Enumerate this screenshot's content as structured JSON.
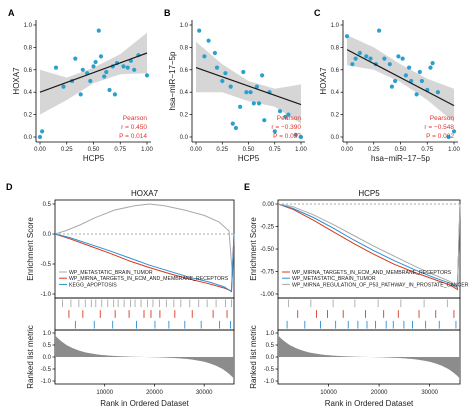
{
  "colors": {
    "point": "#2aa0cf",
    "fit_line": "#1a1a1a",
    "ci_band": "#cfcfcf",
    "stat_text": "#e3322b",
    "curve_gray": "#a9a9a9",
    "curve_red": "#d9381e",
    "curve_blue": "#2a8fd6",
    "hit_gray": "#9a9a9a",
    "metric_fill": "#8c8c8c"
  },
  "chart_data": [
    {
      "id": "A",
      "panel_label": "A",
      "type": "scatter",
      "xlabel": "HCP5",
      "ylabel": "HOXA7",
      "xlim": [
        0.0,
        1.0
      ],
      "ylim": [
        0.0,
        1.0
      ],
      "xticks": [
        "0.00",
        "0.25",
        "0.50",
        "0.75",
        "1.00"
      ],
      "yticks": [
        "0.0",
        "0.2",
        "0.4",
        "0.6",
        "0.8",
        "1.0"
      ],
      "points": [
        [
          0.0,
          0.0
        ],
        [
          0.02,
          0.05
        ],
        [
          0.15,
          0.62
        ],
        [
          0.22,
          0.45
        ],
        [
          0.3,
          0.5
        ],
        [
          0.33,
          0.7
        ],
        [
          0.38,
          0.38
        ],
        [
          0.4,
          0.6
        ],
        [
          0.44,
          0.57
        ],
        [
          0.47,
          0.5
        ],
        [
          0.5,
          0.63
        ],
        [
          0.52,
          0.67
        ],
        [
          0.55,
          0.95
        ],
        [
          0.57,
          0.72
        ],
        [
          0.6,
          0.54
        ],
        [
          0.62,
          0.58
        ],
        [
          0.65,
          0.42
        ],
        [
          0.68,
          0.63
        ],
        [
          0.7,
          0.38
        ],
        [
          0.72,
          0.66
        ],
        [
          0.78,
          0.63
        ],
        [
          0.82,
          0.62
        ],
        [
          0.85,
          0.68
        ],
        [
          0.88,
          0.6
        ],
        [
          0.92,
          0.73
        ],
        [
          1.0,
          0.55
        ]
      ],
      "fit": [
        [
          0.0,
          0.4
        ],
        [
          1.0,
          0.75
        ]
      ],
      "ci": {
        "x": [
          0.0,
          0.25,
          0.5,
          0.75,
          1.0
        ],
        "upper": [
          0.6,
          0.53,
          0.62,
          0.74,
          0.93
        ],
        "lower": [
          0.2,
          0.33,
          0.48,
          0.56,
          0.57
        ]
      },
      "stats": {
        "method": "Pearson",
        "r": "r = 0.450",
        "p": "P = 0.014"
      }
    },
    {
      "id": "B",
      "panel_label": "B",
      "type": "scatter",
      "xlabel": "HCP5",
      "ylabel": "hsa−miR−17−5p",
      "xlim": [
        0.0,
        1.0
      ],
      "ylim": [
        0.0,
        1.0
      ],
      "xticks": [
        "0.00",
        "0.25",
        "0.50",
        "0.75",
        "1.00"
      ],
      "yticks": [
        "0.0",
        "0.2",
        "0.4",
        "0.6",
        "0.8",
        "1.0"
      ],
      "points": [
        [
          0.03,
          0.95
        ],
        [
          0.08,
          0.72
        ],
        [
          0.12,
          0.86
        ],
        [
          0.18,
          0.75
        ],
        [
          0.2,
          0.62
        ],
        [
          0.25,
          0.5
        ],
        [
          0.28,
          0.57
        ],
        [
          0.33,
          0.45
        ],
        [
          0.35,
          0.12
        ],
        [
          0.38,
          0.08
        ],
        [
          0.42,
          0.27
        ],
        [
          0.45,
          0.58
        ],
        [
          0.48,
          0.4
        ],
        [
          0.52,
          0.4
        ],
        [
          0.55,
          0.3
        ],
        [
          0.58,
          0.45
        ],
        [
          0.6,
          0.3
        ],
        [
          0.63,
          0.55
        ],
        [
          0.65,
          0.15
        ],
        [
          0.7,
          0.4
        ],
        [
          0.75,
          0.05
        ],
        [
          0.8,
          0.23
        ],
        [
          0.85,
          0.18
        ],
        [
          0.88,
          0.2
        ],
        [
          0.95,
          0.02
        ],
        [
          1.0,
          0.0
        ]
      ],
      "fit": [
        [
          0.0,
          0.62
        ],
        [
          1.0,
          0.29
        ]
      ],
      "ci": {
        "x": [
          0.0,
          0.25,
          0.5,
          0.75,
          1.0
        ],
        "upper": [
          0.85,
          0.65,
          0.5,
          0.43,
          0.47
        ],
        "lower": [
          0.4,
          0.4,
          0.32,
          0.27,
          0.12
        ]
      },
      "stats": {
        "method": "Pearson",
        "r": "r = −0.390",
        "p": "P = 0.037"
      }
    },
    {
      "id": "C",
      "panel_label": "C",
      "type": "scatter",
      "xlabel": "hsa−miR−17−5p",
      "ylabel": "HOXA7",
      "xlim": [
        0.0,
        1.0
      ],
      "ylim": [
        0.0,
        1.0
      ],
      "xticks": [
        "0.00",
        "0.25",
        "0.50",
        "0.75",
        "1.00"
      ],
      "yticks": [
        "0.0",
        "0.2",
        "0.4",
        "0.6",
        "0.8",
        "1.0"
      ],
      "points": [
        [
          0.0,
          0.9
        ],
        [
          0.05,
          0.65
        ],
        [
          0.08,
          0.7
        ],
        [
          0.12,
          0.75
        ],
        [
          0.18,
          0.72
        ],
        [
          0.22,
          0.7
        ],
        [
          0.27,
          0.65
        ],
        [
          0.3,
          0.95
        ],
        [
          0.35,
          0.7
        ],
        [
          0.4,
          0.65
        ],
        [
          0.42,
          0.45
        ],
        [
          0.45,
          0.5
        ],
        [
          0.48,
          0.72
        ],
        [
          0.52,
          0.7
        ],
        [
          0.55,
          0.55
        ],
        [
          0.58,
          0.62
        ],
        [
          0.6,
          0.5
        ],
        [
          0.65,
          0.38
        ],
        [
          0.68,
          0.58
        ],
        [
          0.7,
          0.5
        ],
        [
          0.75,
          0.42
        ],
        [
          0.78,
          0.62
        ],
        [
          0.8,
          0.66
        ],
        [
          0.85,
          0.4
        ],
        [
          0.95,
          0.0
        ],
        [
          1.0,
          0.05
        ]
      ],
      "fit": [
        [
          0.0,
          0.78
        ],
        [
          1.0,
          0.28
        ]
      ],
      "ci": {
        "x": [
          0.0,
          0.25,
          0.5,
          0.75,
          1.0
        ],
        "upper": [
          0.91,
          0.8,
          0.65,
          0.52,
          0.43
        ],
        "lower": [
          0.64,
          0.6,
          0.49,
          0.33,
          0.13
        ]
      },
      "stats": {
        "method": "Pearson",
        "r": "r = −0.548",
        "p": "P = 0.002"
      }
    },
    {
      "id": "D",
      "panel_label": "D",
      "type": "line",
      "title": "HOXA7",
      "ylabel_top": "Enrichment Score",
      "ylabel_bottom": "Ranked list metric",
      "xlabel": "Rank in Ordered Dataset",
      "xlim": [
        0,
        36000
      ],
      "xticks": [
        10000,
        20000,
        30000
      ],
      "xtick_labels": [
        "10000",
        "20000",
        "30000"
      ],
      "es_ylim": [
        -1.0,
        0.5
      ],
      "es_yticks": [
        "0.5",
        "0.0",
        "-0.5",
        "-1.0"
      ],
      "metric_ylim": [
        -1.0,
        1.0
      ],
      "metric_yticks": [
        "1.0",
        "0.5",
        "0.0",
        "-0.5",
        "-1.0"
      ],
      "legend": [
        "WP_METASTATIC_BRAIN_TUMOR",
        "WP_MIRNA_TARGETS_IN_ECM_AND_MEMBRANE_RECEPTORS",
        "KEGG_APOPTOSIS"
      ],
      "series": [
        {
          "name": "WP_METASTATIC_BRAIN_TUMOR",
          "color": "curve_gray",
          "x": [
            0,
            2000,
            5000,
            8000,
            12000,
            16000,
            19000,
            22000,
            26000,
            30000,
            33000,
            35000,
            35700,
            36000
          ],
          "y": [
            0,
            0.05,
            0.15,
            0.27,
            0.4,
            0.47,
            0.5,
            0.47,
            0.4,
            0.31,
            0.2,
            0.05,
            -0.7,
            0.0
          ]
        },
        {
          "name": "WP_MIRNA_TARGETS_IN_ECM_AND_MEMBRANE_RECEPTORS",
          "color": "curve_red",
          "x": [
            0,
            3000,
            7000,
            11000,
            15000,
            19000,
            23000,
            27000,
            31000,
            34000,
            35500,
            36000
          ],
          "y": [
            0,
            -0.08,
            -0.2,
            -0.32,
            -0.45,
            -0.56,
            -0.66,
            -0.75,
            -0.83,
            -0.9,
            -0.95,
            0.0
          ]
        },
        {
          "name": "KEGG_APOPTOSIS",
          "color": "curve_blue",
          "x": [
            0,
            3000,
            7000,
            11000,
            15000,
            19000,
            23000,
            27000,
            31000,
            34000,
            35500,
            36000
          ],
          "y": [
            0,
            -0.06,
            -0.17,
            -0.28,
            -0.4,
            -0.52,
            -0.62,
            -0.72,
            -0.8,
            -0.88,
            -0.96,
            0.0
          ]
        }
      ],
      "hits": [
        {
          "color": "curve_gray",
          "x": [
            1500,
            3200,
            4800,
            6100,
            7300,
            8200,
            9400,
            10600,
            11800,
            12700,
            13900,
            15200,
            16100,
            17300,
            18600,
            19700,
            21000,
            22400,
            23900,
            25300,
            27100,
            28900,
            30600,
            32400,
            34300,
            35500
          ]
        },
        {
          "color": "curve_red",
          "x": [
            2800,
            5600,
            9100,
            12100,
            14900,
            17900,
            19300,
            21100,
            24100,
            27600,
            31800,
            34600
          ]
        },
        {
          "color": "curve_blue",
          "x": [
            4100,
            7900,
            11600,
            16400,
            20100,
            22900,
            26100,
            29400,
            33100,
            35300
          ]
        }
      ]
    },
    {
      "id": "E",
      "panel_label": "E",
      "type": "line",
      "title": "HCP5",
      "ylabel_top": "Enrichment Score",
      "ylabel_bottom": "Ranked list metric",
      "xlabel": "Rank in Ordered Dataset",
      "xlim": [
        0,
        36000
      ],
      "xticks": [
        10000,
        20000,
        30000
      ],
      "xtick_labels": [
        "10000",
        "20000",
        "30000"
      ],
      "es_ylim": [
        -1.0,
        0.0
      ],
      "es_yticks": [
        "0.00",
        "-0.25",
        "-0.50",
        "-0.75",
        "-1.00"
      ],
      "metric_ylim": [
        -1.0,
        1.0
      ],
      "metric_yticks": [
        "1.0",
        "0.5",
        "0.0",
        "-0.5",
        "-1.0"
      ],
      "legend": [
        "WP_MIRNA_TARGETS_IN_ECM_AND_MEMBRANE_RECEPTORS",
        "WP_METASTATIC_BRAIN_TUMOR",
        "WP_MIRNA_REGULATION_OF_P53_PATHWAY_IN_PROSTATE_CANCER"
      ],
      "series": [
        {
          "name": "WP_MIRNA_TARGETS_IN_ECM_AND_MEMBRANE_RECEPTORS",
          "color": "curve_red",
          "x": [
            0,
            3000,
            7000,
            11000,
            15000,
            19000,
            23000,
            27000,
            31000,
            34000,
            35500,
            36000
          ],
          "y": [
            0,
            -0.06,
            -0.18,
            -0.31,
            -0.44,
            -0.56,
            -0.67,
            -0.76,
            -0.84,
            -0.9,
            -0.95,
            0.0
          ]
        },
        {
          "name": "WP_METASTATIC_BRAIN_TUMOR",
          "color": "curve_blue",
          "x": [
            0,
            3000,
            7000,
            11000,
            15000,
            19000,
            23000,
            27000,
            31000,
            34000,
            35500,
            36000
          ],
          "y": [
            0,
            -0.05,
            -0.15,
            -0.27,
            -0.4,
            -0.52,
            -0.63,
            -0.73,
            -0.82,
            -0.88,
            -0.93,
            0.0
          ]
        },
        {
          "name": "WP_MIRNA_REGULATION_OF_P53_PATHWAY_IN_PROSTATE_CANCER",
          "color": "curve_gray",
          "x": [
            0,
            3000,
            7000,
            11000,
            15000,
            19000,
            23000,
            27000,
            31000,
            34000,
            35500,
            36000
          ],
          "y": [
            0,
            -0.03,
            -0.12,
            -0.23,
            -0.35,
            -0.47,
            -0.58,
            -0.69,
            -0.79,
            -0.86,
            -0.92,
            0.0
          ]
        }
      ],
      "hits": [
        {
          "color": "curve_gray",
          "x": [
            2100,
            6500,
            10900,
            15200,
            19800,
            24300,
            28900,
            33500
          ]
        },
        {
          "color": "curve_red",
          "x": [
            3900,
            7600,
            9800,
            12900,
            17300,
            20900,
            23800,
            27900,
            31200,
            34800
          ]
        },
        {
          "color": "curve_blue",
          "x": [
            1800,
            5300,
            8400,
            11400,
            13900,
            15800,
            17600,
            19300,
            21400,
            22800,
            24900,
            26600,
            29200,
            31900,
            35200
          ]
        }
      ]
    }
  ]
}
